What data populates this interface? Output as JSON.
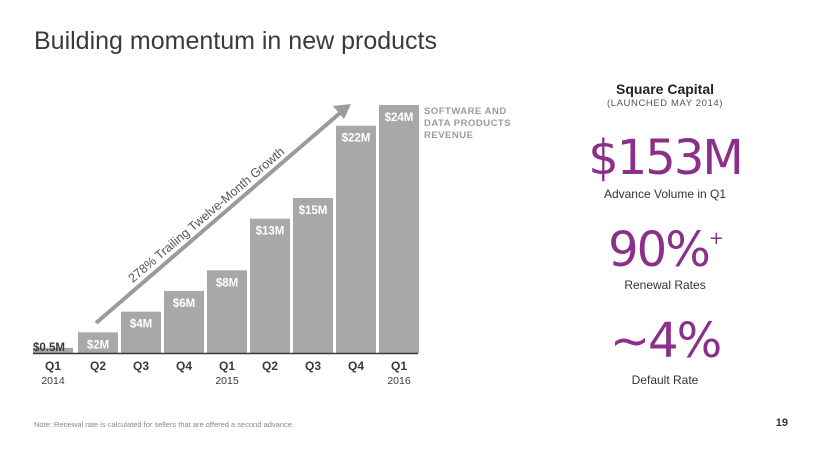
{
  "slide": {
    "title": "Building momentum in new products",
    "note": "Note: Renewal rate is calculated for sellers that are offered a second advance.",
    "page_number": "19"
  },
  "chart_data": {
    "type": "bar",
    "title": "SOFTWARE AND DATA PRODUCTS REVENUE",
    "legend_lines": [
      "SOFTWARE AND",
      "DATA PRODUCTS",
      "REVENUE"
    ],
    "categories": [
      "Q1",
      "Q2",
      "Q3",
      "Q4",
      "Q1",
      "Q2",
      "Q3",
      "Q4",
      "Q1"
    ],
    "year_labels": [
      "2014",
      "",
      "",
      "",
      "2015",
      "",
      "",
      "",
      "2016"
    ],
    "values": [
      0.5,
      2,
      4,
      6,
      8,
      13,
      15,
      22,
      24
    ],
    "value_labels": [
      "$0.5M",
      "$2M",
      "$4M",
      "$6M",
      "$8M",
      "$13M",
      "$15M",
      "$22M",
      "$24M"
    ],
    "units": "$M",
    "ylim": [
      0,
      24
    ],
    "annotation": "278% Trailing Twelve-Month Growth",
    "colors": {
      "bar": "#a8a8aa",
      "label": "#ffffff",
      "arrow": "#9b9b9b",
      "axis": "#3a3a3a"
    }
  },
  "capital": {
    "title": "Square Capital",
    "subtitle": "(LAUNCHED MAY 2014)",
    "stat1_value": "$153M",
    "stat1_caption": "Advance Volume in Q1",
    "stat2_value": "90%",
    "stat2_sup": "+",
    "stat2_caption": "Renewal Rates",
    "stat3_value": "~4%",
    "stat3_caption": "Default Rate",
    "accent_color": "#8b2f8b"
  }
}
